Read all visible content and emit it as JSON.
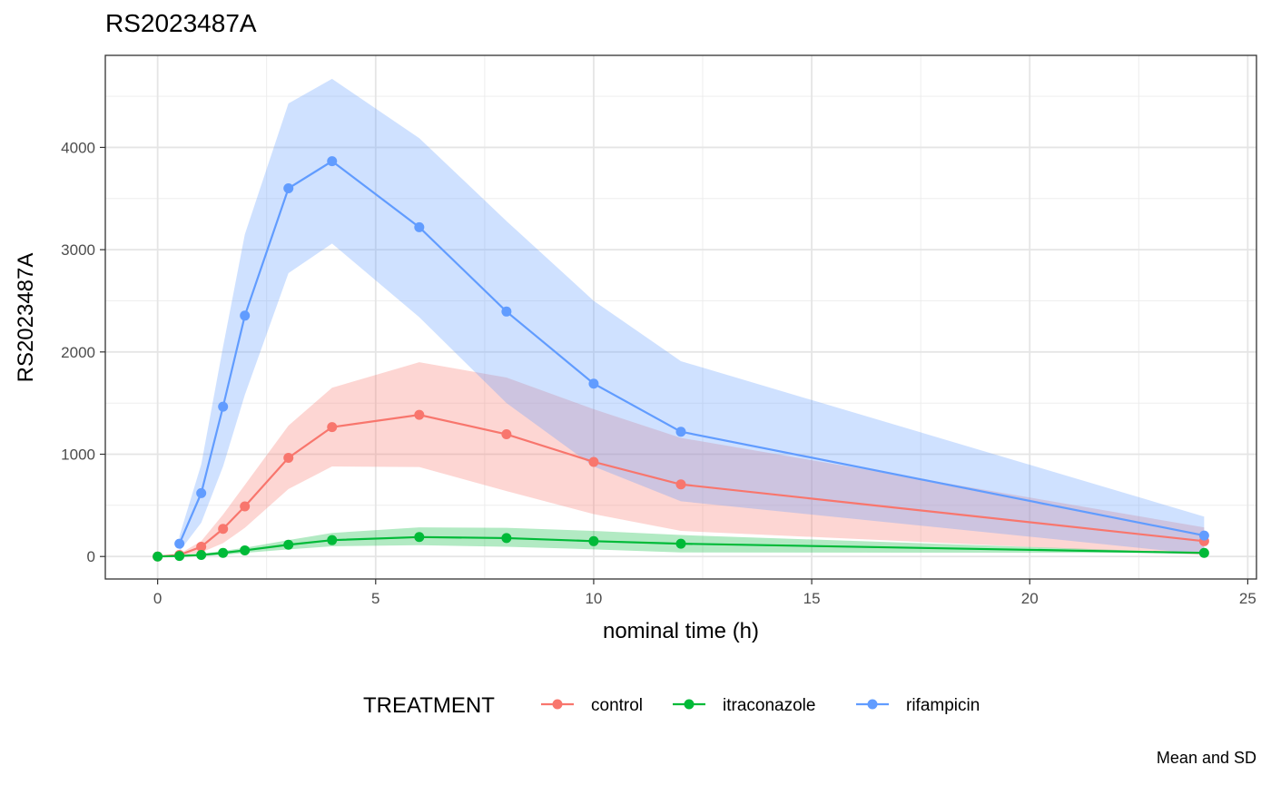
{
  "title": "RS2023487A",
  "caption": "Mean and SD",
  "chart_data": {
    "type": "line",
    "title": "RS2023487A",
    "xlabel": "nominal time (h)",
    "ylabel": "RS2023487A",
    "xlim": [
      -1.2,
      25.2
    ],
    "ylim": [
      -220,
      4900
    ],
    "x_ticks": [
      0,
      5,
      10,
      15,
      20,
      25
    ],
    "x_tick_labels": [
      "0",
      "5",
      "10",
      "15",
      "20",
      "25"
    ],
    "y_ticks": [
      0,
      1000,
      2000,
      3000,
      4000
    ],
    "y_tick_labels": [
      "0",
      "1000",
      "2000",
      "3000",
      "4000"
    ],
    "grid": true,
    "ribbon": "mean ± SD",
    "legend": {
      "title": "TREATMENT",
      "position": "bottom"
    },
    "series": [
      {
        "name": "control",
        "color": "#F8766D",
        "x": [
          0,
          0.5,
          1,
          1.5,
          2,
          3,
          4,
          6,
          8,
          10,
          12,
          24
        ],
        "y": [
          0,
          15,
          95,
          270,
          490,
          965,
          1265,
          1385,
          1195,
          925,
          705,
          150
        ],
        "lower": [
          0,
          5,
          40,
          130,
          280,
          660,
          880,
          875,
          640,
          415,
          250,
          15
        ],
        "upper": [
          0,
          25,
          150,
          410,
          700,
          1280,
          1650,
          1900,
          1750,
          1440,
          1160,
          285
        ]
      },
      {
        "name": "itraconazole",
        "color": "#00BA38",
        "x": [
          0,
          0.5,
          1,
          1.5,
          2,
          3,
          4,
          6,
          8,
          10,
          12,
          24
        ],
        "y": [
          0,
          5,
          15,
          35,
          60,
          115,
          160,
          190,
          180,
          150,
          125,
          35
        ],
        "lower": [
          0,
          0,
          5,
          15,
          35,
          70,
          100,
          110,
          95,
          70,
          40,
          35
        ],
        "upper": [
          0,
          10,
          25,
          55,
          85,
          160,
          230,
          285,
          280,
          250,
          210,
          35
        ]
      },
      {
        "name": "rifampicin",
        "color": "#619CFF",
        "x": [
          0.5,
          1,
          1.5,
          2,
          3,
          4,
          6,
          8,
          10,
          12,
          24
        ],
        "y": [
          125,
          620,
          1465,
          2355,
          3600,
          3865,
          3220,
          2395,
          1690,
          1220,
          205
        ],
        "lower": [
          50,
          330,
          880,
          1580,
          2770,
          3060,
          2340,
          1500,
          880,
          540,
          20
        ],
        "upper": [
          200,
          900,
          2050,
          3150,
          4430,
          4670,
          4090,
          3280,
          2500,
          1910,
          390
        ]
      }
    ]
  }
}
